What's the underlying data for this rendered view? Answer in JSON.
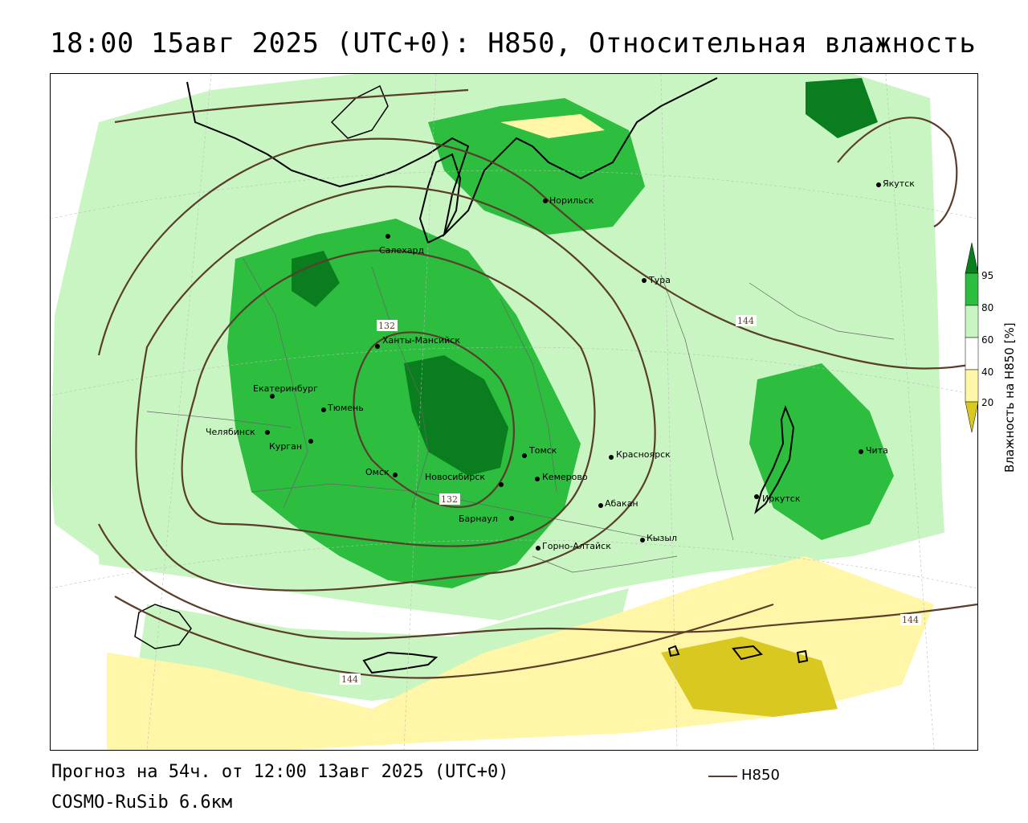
{
  "title": "18:00 15авг 2025 (UTC+0): H850, Относительная влажность",
  "footer": {
    "forecast": "Прогноз на 54ч. от 12:00 13авг 2025 (UTC+0)",
    "model": "COSMO-RuSib 6.6км",
    "line_legend": "H850"
  },
  "colorbar": {
    "title": "Влажность на H850 [%]",
    "ticks": [
      "95",
      "80",
      "60",
      "40",
      "20"
    ],
    "colors": {
      "c95": "#0a7d1e",
      "c80": "#2dbd3f",
      "c60": "#c9f5c2",
      "c40": "#ffffff",
      "c20": "#fff6a8",
      "c0": "#d9c81f"
    }
  },
  "contour_labels": [
    "132",
    "132",
    "144",
    "144",
    "144"
  ],
  "cities": [
    {
      "name": "Якутск"
    },
    {
      "name": "Норильск"
    },
    {
      "name": "Салехард"
    },
    {
      "name": "Тура"
    },
    {
      "name": "Ханты-Мансийск"
    },
    {
      "name": "Екатеринбург"
    },
    {
      "name": "Тюмень"
    },
    {
      "name": "Челябинск"
    },
    {
      "name": "Курган"
    },
    {
      "name": "Омск"
    },
    {
      "name": "Новосибирск"
    },
    {
      "name": "Томск"
    },
    {
      "name": "Красноярск"
    },
    {
      "name": "Кемерово"
    },
    {
      "name": "Барнаул"
    },
    {
      "name": "Абакан"
    },
    {
      "name": "Иркутск"
    },
    {
      "name": "Чита"
    },
    {
      "name": "Кызыл"
    },
    {
      "name": "Горно-Алтайск"
    }
  ]
}
